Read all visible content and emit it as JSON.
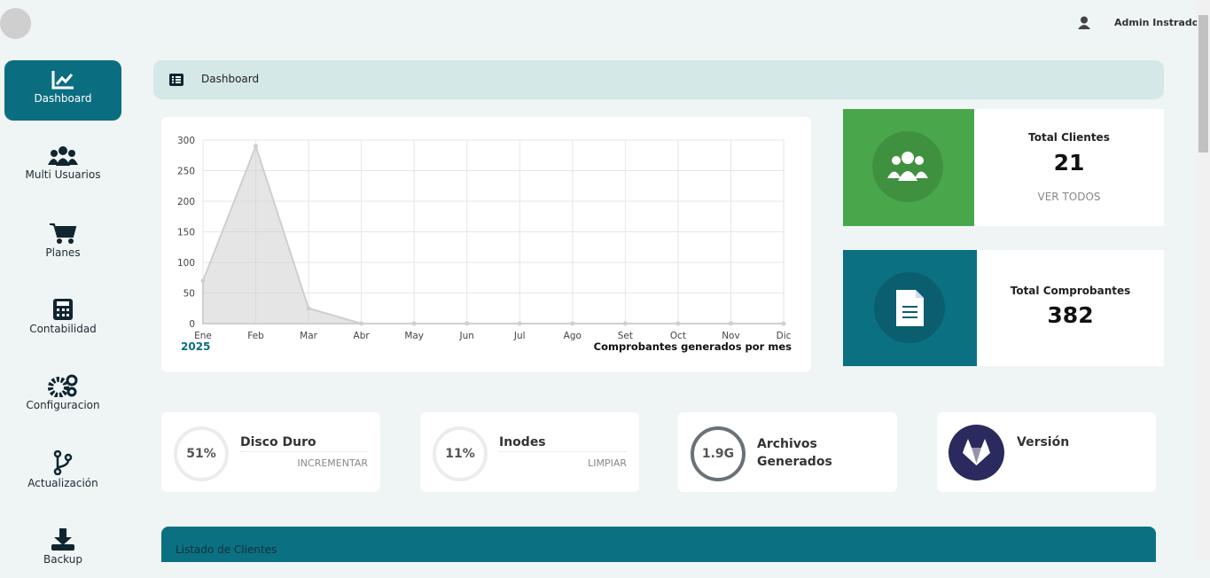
{
  "header": {
    "user": "Admin Instrador"
  },
  "sidebar": {
    "items": [
      "Dashboard",
      "Multi Usuarios",
      "Planes",
      "Contabilidad",
      "Configuracion",
      "Actualización",
      "Backup"
    ]
  },
  "breadcrumb": "Dashboard",
  "chart_data": {
    "type": "area",
    "year": "2025",
    "caption": "Comprobantes generados por mes",
    "categories": [
      "Ene",
      "Feb",
      "Mar",
      "Abr",
      "May",
      "Jun",
      "Jul",
      "Ago",
      "Set",
      "Oct",
      "Nov",
      "Dic"
    ],
    "values": [
      70,
      290,
      25,
      0,
      0,
      0,
      0,
      0,
      0,
      0,
      0,
      0
    ],
    "color": "#cfcfcf",
    "ylim": [
      0,
      300
    ],
    "yticks": [
      0,
      50,
      100,
      150,
      200,
      250,
      300
    ],
    "grid": true
  },
  "cards": [
    {
      "title": "Total Clientes",
      "value": "21",
      "link": "VER TODOS"
    },
    {
      "title": "Total Comprobantes",
      "value": "382"
    }
  ],
  "stats": [
    {
      "badge": "51%",
      "title": "Disco Duro",
      "action": "INCREMENTAR"
    },
    {
      "badge": "11%",
      "title": "Inodes",
      "action": "LIMPIAR"
    },
    {
      "badge": "1.9G",
      "title": "Archivos Generados"
    },
    {
      "title": "Versión"
    }
  ],
  "table": {
    "title": "Listado de Clientes"
  }
}
